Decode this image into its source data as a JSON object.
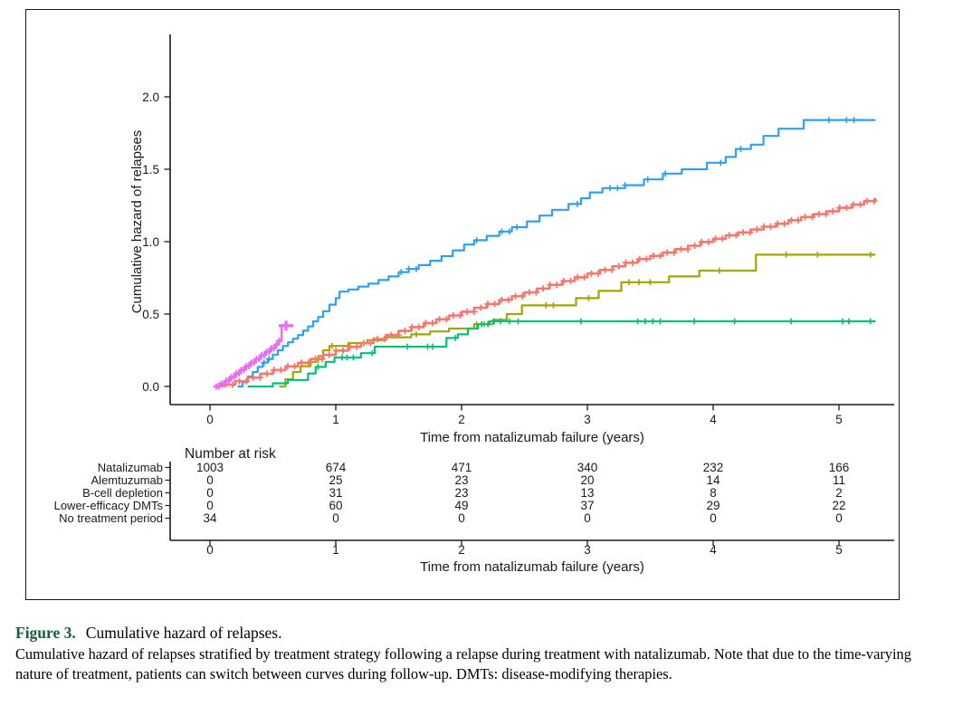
{
  "figure": {
    "caption": {
      "label": "Figure 3.",
      "title": "Cumulative hazard of relapses.",
      "body": "Cumulative hazard of relapses stratified by treatment strategy following a relapse during treatment with natalizumab. Note that due to the time-varying nature of treatment, patients can switch between curves during follow-up. DMTs: disease-modifying therapies.",
      "label_color": "#17603C"
    }
  },
  "chart_data": {
    "type": "line",
    "subtype": "cumulative-hazard-step-curves",
    "title": "",
    "xlabel": "Time from natalizumab failure (years)",
    "ylabel": "Cumulative hazard of relapses",
    "xlim": [
      0,
      5.4
    ],
    "ylim": [
      0,
      2.3
    ],
    "grid": false,
    "legend_position": "risk-table-left",
    "x_ticks": [
      0,
      1,
      2,
      3,
      4,
      5
    ],
    "x_tick_labels": [
      "0",
      "1",
      "2",
      "3",
      "4",
      "5"
    ],
    "y_ticks": [
      0,
      0.5,
      1,
      1.5,
      2
    ],
    "y_tick_labels": [
      "0.0",
      "0.5",
      "1.0",
      "1.5",
      "2.0"
    ],
    "series": [
      {
        "name": "Alemtuzumab",
        "color": "#A3A500",
        "line_width": 2.2,
        "steps": [
          [
            0.55,
            0
          ],
          [
            0.6,
            0.05
          ],
          [
            0.66,
            0.1
          ],
          [
            0.72,
            0.14
          ],
          [
            0.8,
            0.17
          ],
          [
            0.86,
            0.21
          ],
          [
            0.9,
            0.25
          ],
          [
            0.95,
            0.28
          ],
          [
            1.1,
            0.3
          ],
          [
            1.25,
            0.32
          ],
          [
            1.4,
            0.34
          ],
          [
            1.6,
            0.36
          ],
          [
            1.75,
            0.38
          ],
          [
            1.9,
            0.4
          ],
          [
            2.1,
            0.43
          ],
          [
            2.25,
            0.46
          ],
          [
            2.36,
            0.5
          ],
          [
            2.48,
            0.56
          ],
          [
            2.91,
            0.61
          ],
          [
            3.09,
            0.66
          ],
          [
            3.27,
            0.72
          ],
          [
            3.65,
            0.76
          ],
          [
            3.89,
            0.8
          ],
          [
            4.34,
            0.91
          ],
          [
            5.29,
            0.91
          ]
        ],
        "censors": [
          0.97,
          1.3,
          1.64,
          2.12,
          2.18,
          2.67,
          2.73,
          3.01,
          3.33,
          3.41,
          3.5,
          4.05,
          4.58,
          4.83,
          5.25
        ]
      },
      {
        "name": "B-cell depletion",
        "color": "#00BF7D",
        "line_width": 2.2,
        "steps": [
          [
            0.3,
            0
          ],
          [
            0.5,
            0.022
          ],
          [
            0.62,
            0.045
          ],
          [
            0.78,
            0.09
          ],
          [
            0.84,
            0.135
          ],
          [
            0.92,
            0.17
          ],
          [
            0.99,
            0.2
          ],
          [
            1.2,
            0.23
          ],
          [
            1.31,
            0.275
          ],
          [
            1.88,
            0.335
          ],
          [
            1.97,
            0.36
          ],
          [
            2.05,
            0.4
          ],
          [
            2.13,
            0.43
          ],
          [
            2.22,
            0.45
          ],
          [
            5.29,
            0.45
          ]
        ],
        "censors": [
          0.86,
          1.05,
          1.09,
          1.14,
          1.29,
          1.57,
          1.73,
          1.77,
          1.95,
          2.16,
          2.21,
          2.26,
          2.31,
          2.38,
          2.45,
          2.95,
          3.4,
          3.46,
          3.52,
          3.58,
          3.85,
          4.17,
          4.62,
          5.03,
          5.08,
          5.25
        ]
      },
      {
        "name": "Lower-efficacy DMTs",
        "color": "#2E9FF3",
        "line_width": 2.2,
        "steps": [
          [
            0.22,
            0
          ],
          [
            0.26,
            0.03
          ],
          [
            0.3,
            0.07
          ],
          [
            0.34,
            0.1
          ],
          [
            0.38,
            0.135
          ],
          [
            0.42,
            0.165
          ],
          [
            0.46,
            0.19
          ],
          [
            0.5,
            0.22
          ],
          [
            0.54,
            0.25
          ],
          [
            0.58,
            0.28
          ],
          [
            0.62,
            0.305
          ],
          [
            0.66,
            0.33
          ],
          [
            0.7,
            0.355
          ],
          [
            0.74,
            0.385
          ],
          [
            0.78,
            0.415
          ],
          [
            0.82,
            0.45
          ],
          [
            0.86,
            0.48
          ],
          [
            0.9,
            0.52
          ],
          [
            0.95,
            0.565
          ],
          [
            1.0,
            0.61
          ],
          [
            1.03,
            0.655
          ],
          [
            1.1,
            0.67
          ],
          [
            1.18,
            0.69
          ],
          [
            1.26,
            0.71
          ],
          [
            1.34,
            0.735
          ],
          [
            1.42,
            0.76
          ],
          [
            1.5,
            0.79
          ],
          [
            1.58,
            0.812
          ],
          [
            1.66,
            0.838
          ],
          [
            1.75,
            0.868
          ],
          [
            1.84,
            0.9
          ],
          [
            1.93,
            0.94
          ],
          [
            2.02,
            0.98
          ],
          [
            2.1,
            1.01
          ],
          [
            2.2,
            1.04
          ],
          [
            2.3,
            1.07
          ],
          [
            2.4,
            1.1
          ],
          [
            2.52,
            1.14
          ],
          [
            2.62,
            1.18
          ],
          [
            2.72,
            1.22
          ],
          [
            2.85,
            1.26
          ],
          [
            2.95,
            1.3
          ],
          [
            3.02,
            1.34
          ],
          [
            3.12,
            1.37
          ],
          [
            3.3,
            1.39
          ],
          [
            3.45,
            1.43
          ],
          [
            3.6,
            1.47
          ],
          [
            3.75,
            1.5
          ],
          [
            3.95,
            1.545
          ],
          [
            4.1,
            1.585
          ],
          [
            4.18,
            1.64
          ],
          [
            4.3,
            1.67
          ],
          [
            4.4,
            1.73
          ],
          [
            4.52,
            1.78
          ],
          [
            4.72,
            1.84
          ],
          [
            5.29,
            1.84
          ]
        ],
        "censors": [
          0.43,
          0.47,
          1.52,
          1.58,
          1.64,
          2.12,
          2.32,
          2.38,
          2.44,
          2.92,
          3.18,
          3.24,
          3.3,
          3.48,
          3.62,
          4.06,
          4.22,
          4.92,
          5.06,
          5.12
        ]
      },
      {
        "name": "Natalizumab",
        "color": "#F8766D",
        "line_width": 2.6,
        "censor_size": 3.6,
        "censor_width": 1.8,
        "steps": [
          [
            0.05,
            0
          ],
          [
            0.1,
            0.012
          ],
          [
            0.2,
            0.036
          ],
          [
            0.3,
            0.061
          ],
          [
            0.4,
            0.088
          ],
          [
            0.5,
            0.114
          ],
          [
            0.6,
            0.139
          ],
          [
            0.7,
            0.164
          ],
          [
            0.8,
            0.19
          ],
          [
            0.9,
            0.218
          ],
          [
            1.0,
            0.248
          ],
          [
            1.1,
            0.274
          ],
          [
            1.2,
            0.3
          ],
          [
            1.3,
            0.328
          ],
          [
            1.4,
            0.356
          ],
          [
            1.5,
            0.384
          ],
          [
            1.6,
            0.41
          ],
          [
            1.7,
            0.438
          ],
          [
            1.8,
            0.464
          ],
          [
            1.9,
            0.49
          ],
          [
            2.0,
            0.516
          ],
          [
            2.1,
            0.544
          ],
          [
            2.2,
            0.57
          ],
          [
            2.3,
            0.598
          ],
          [
            2.4,
            0.624
          ],
          [
            2.5,
            0.65
          ],
          [
            2.6,
            0.676
          ],
          [
            2.7,
            0.702
          ],
          [
            2.8,
            0.728
          ],
          [
            2.9,
            0.754
          ],
          [
            3.0,
            0.78
          ],
          [
            3.1,
            0.805
          ],
          [
            3.2,
            0.83
          ],
          [
            3.3,
            0.855
          ],
          [
            3.4,
            0.88
          ],
          [
            3.5,
            0.902
          ],
          [
            3.6,
            0.925
          ],
          [
            3.7,
            0.948
          ],
          [
            3.8,
            0.972
          ],
          [
            3.9,
            0.998
          ],
          [
            4.0,
            1.02
          ],
          [
            4.1,
            1.044
          ],
          [
            4.2,
            1.064
          ],
          [
            4.3,
            1.084
          ],
          [
            4.4,
            1.104
          ],
          [
            4.5,
            1.124
          ],
          [
            4.6,
            1.148
          ],
          [
            4.7,
            1.17
          ],
          [
            4.8,
            1.19
          ],
          [
            4.9,
            1.21
          ],
          [
            5.0,
            1.234
          ],
          [
            5.1,
            1.256
          ],
          [
            5.2,
            1.28
          ],
          [
            5.29,
            1.3
          ]
        ],
        "censor_band": {
          "from": 0.07,
          "to": 5.28,
          "count": 96
        }
      },
      {
        "name": "No treatment period",
        "color": "#E76BF3",
        "line_width": 2.4,
        "censor_size": 3.4,
        "censor_width": 2.0,
        "steps": [
          [
            0.04,
            0
          ],
          [
            0.08,
            0.02
          ],
          [
            0.12,
            0.04
          ],
          [
            0.16,
            0.065
          ],
          [
            0.2,
            0.09
          ],
          [
            0.24,
            0.115
          ],
          [
            0.28,
            0.14
          ],
          [
            0.32,
            0.165
          ],
          [
            0.36,
            0.19
          ],
          [
            0.4,
            0.215
          ],
          [
            0.44,
            0.24
          ],
          [
            0.48,
            0.265
          ],
          [
            0.52,
            0.29
          ],
          [
            0.55,
            0.315
          ],
          [
            0.57,
            0.42
          ],
          [
            0.64,
            0.42
          ]
        ],
        "censors": [
          0.05,
          0.07,
          0.09,
          0.11,
          0.13,
          0.15,
          0.17,
          0.19,
          0.21,
          0.23,
          0.25,
          0.27,
          0.29,
          0.31,
          0.33,
          0.35,
          0.37,
          0.39,
          0.41,
          0.43,
          0.45,
          0.47,
          0.49,
          0.51,
          0.53,
          0.55
        ],
        "terminal_cap": [
          0.605,
          0.42
        ]
      }
    ],
    "risk_table": {
      "title": "Number at risk",
      "time_points": [
        0,
        1,
        2,
        3,
        4,
        5
      ],
      "time_labels": [
        "0",
        "1",
        "2",
        "3",
        "4",
        "5"
      ],
      "xlabel": "Time from natalizumab failure (years)",
      "rows": [
        {
          "label": "Natalizumab",
          "color": "#F8766D",
          "values": [
            "1003",
            "674",
            "471",
            "340",
            "232",
            "166"
          ]
        },
        {
          "label": "Alemtuzumab",
          "color": "#A3A500",
          "values": [
            "0",
            "25",
            "23",
            "20",
            "14",
            "11"
          ]
        },
        {
          "label": "B-cell depletion",
          "color": "#00BF7D",
          "values": [
            "0",
            "31",
            "23",
            "13",
            "8",
            "2"
          ]
        },
        {
          "label": "Lower-efficacy DMTs",
          "color": "#2E9FF3",
          "values": [
            "0",
            "60",
            "49",
            "37",
            "29",
            "22"
          ]
        },
        {
          "label": "No treatment period",
          "color": "#E76BF3",
          "values": [
            "34",
            "0",
            "0",
            "0",
            "0",
            "0"
          ]
        }
      ]
    }
  }
}
